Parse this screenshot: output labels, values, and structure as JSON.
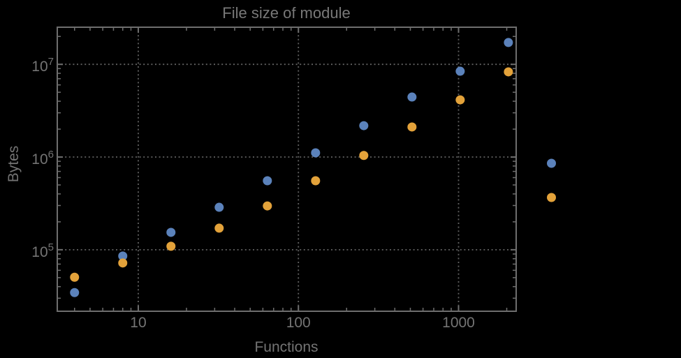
{
  "figure": {
    "title": "File size of module",
    "x_axis_label": "Functions",
    "y_axis_label": "Bytes",
    "background_color": "#000000",
    "frame_color": "#6e6e6e",
    "grid_color": "#616161",
    "tick_color": "#6e6e6e",
    "text_color": "#747474"
  },
  "chart_data": {
    "type": "scatter",
    "title": "File size of module",
    "xlabel": "Functions",
    "ylabel": "Bytes",
    "x_scale": "log",
    "y_scale": "log",
    "xlim": [
      3.12,
      2290
    ],
    "ylim": [
      21700,
      25150000
    ],
    "grid": "dotted lines at decade ticks only",
    "x": [
      4,
      8,
      16,
      32,
      64,
      128,
      256,
      512,
      1024,
      2048
    ],
    "series": [
      {
        "name": "series-blue",
        "color": "#5B82BB",
        "values": [
          34500,
          85500,
          154000,
          287000,
          555000,
          1110000,
          2180000,
          4440000,
          8430000,
          17200000
        ]
      },
      {
        "name": "series-orange",
        "color": "#E3A23A",
        "values": [
          50500,
          72000,
          109000,
          171000,
          297000,
          555000,
          1040000,
          2110000,
          4140000,
          8300000
        ]
      }
    ],
    "x_major_ticks": [
      10,
      100,
      1000
    ],
    "x_tick_labels": [
      "10",
      "100",
      "1000"
    ],
    "x_minor_ticks": [
      4,
      5,
      6,
      7,
      8,
      9,
      20,
      30,
      40,
      50,
      60,
      70,
      80,
      90,
      200,
      300,
      400,
      500,
      600,
      700,
      800,
      900,
      2000
    ],
    "y_major_ticks": [
      100000,
      1000000,
      10000000
    ],
    "y_tick_labels": [
      {
        "base": "10",
        "exp": "5",
        "value": 100000
      },
      {
        "base": "10",
        "exp": "6",
        "value": 1000000
      },
      {
        "base": "10",
        "exp": "7",
        "value": 10000000
      }
    ],
    "y_minor_ticks": [
      30000,
      40000,
      50000,
      60000,
      70000,
      80000,
      90000,
      200000,
      300000,
      400000,
      500000,
      600000,
      700000,
      800000,
      900000,
      2000000,
      3000000,
      4000000,
      5000000,
      6000000,
      7000000,
      8000000,
      9000000,
      20000000
    ],
    "legend": {
      "position": "outside-right",
      "labels_visible": false,
      "entries": [
        {
          "name": "series-blue",
          "color": "#5B82BB",
          "label": ""
        },
        {
          "name": "series-orange",
          "color": "#E3A23A",
          "label": ""
        }
      ]
    }
  }
}
